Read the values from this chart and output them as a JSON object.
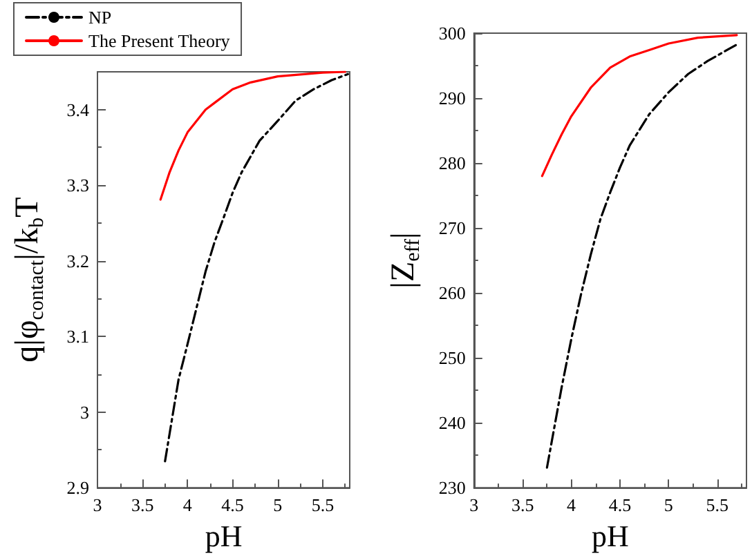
{
  "chart_data": [
    {
      "type": "line",
      "xlabel": "pH",
      "ylabel": "q|φ$_{contact}$|/k$_{b}$T",
      "xlim": [
        3,
        5.8
      ],
      "xticks": [
        3,
        3.5,
        4,
        4.5,
        5,
        5.5
      ],
      "ylim": [
        2.9,
        3.45
      ],
      "yticks": [
        2.9,
        3,
        3.1,
        3.2,
        3.3,
        3.4
      ],
      "legend": "top left",
      "marker": "none",
      "series": [
        {
          "name": "NP",
          "color": "#000000",
          "line_style": "dashed",
          "x": [
            3.75,
            3.8,
            3.9,
            4.0,
            4.1,
            4.2,
            4.3,
            4.4,
            4.5,
            4.6,
            4.7,
            4.8,
            5.0,
            5.2,
            5.4,
            5.6,
            5.78
          ],
          "values": [
            2.935,
            2.971,
            3.043,
            3.09,
            3.138,
            3.186,
            3.225,
            3.257,
            3.29,
            3.317,
            3.338,
            3.359,
            3.385,
            3.412,
            3.427,
            3.439,
            3.447
          ]
        },
        {
          "name": "The Present Theory",
          "color": "#ff0000",
          "line_style": "solid",
          "x": [
            3.7,
            3.8,
            3.9,
            4.0,
            4.2,
            4.3,
            4.5,
            4.7,
            5.0,
            5.5,
            5.75
          ],
          "values": [
            3.281,
            3.317,
            3.346,
            3.37,
            3.4,
            3.409,
            3.427,
            3.436,
            3.444,
            3.449,
            3.45
          ]
        }
      ]
    },
    {
      "type": "line",
      "xlabel": "pH",
      "ylabel": "|Z$_{eff}$|",
      "xlim": [
        3,
        5.8
      ],
      "xticks": [
        3,
        3.5,
        4,
        4.5,
        5,
        5.5
      ],
      "ylim": [
        230,
        300
      ],
      "yticks": [
        230,
        240,
        250,
        260,
        270,
        280,
        290,
        300
      ],
      "marker": "none",
      "series": [
        {
          "color": "#000000",
          "line_style": "dashed",
          "x": [
            3.75,
            3.8,
            3.9,
            4.0,
            4.1,
            4.2,
            4.3,
            4.4,
            4.5,
            4.6,
            4.8,
            5.0,
            5.2,
            5.4,
            5.6,
            5.72
          ],
          "values": [
            233.1,
            237.2,
            245.4,
            252.9,
            259.8,
            265.9,
            271.4,
            275.5,
            279.3,
            282.7,
            287.5,
            290.9,
            293.7,
            295.7,
            297.4,
            298.4
          ]
        },
        {
          "color": "#ff0000",
          "line_style": "solid",
          "x": [
            3.7,
            3.8,
            3.9,
            4.0,
            4.2,
            4.4,
            4.6,
            4.8,
            5.0,
            5.3,
            5.7
          ],
          "values": [
            278.0,
            281.3,
            284.4,
            287.2,
            291.6,
            294.7,
            296.4,
            297.4,
            298.4,
            299.3,
            299.7
          ]
        }
      ]
    }
  ]
}
